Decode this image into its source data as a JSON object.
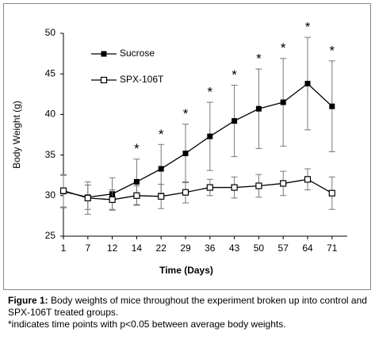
{
  "chart_data": {
    "type": "line",
    "x_label": "Time (Days)",
    "y_label": "Body Weight (g)",
    "categories": [
      "1",
      "7",
      "12",
      "14",
      "22",
      "29",
      "36",
      "43",
      "50",
      "57",
      "64",
      "71"
    ],
    "series": [
      {
        "name": "Sucrose",
        "color": "#000000",
        "marker": "filled-square",
        "values": [
          30.5,
          29.8,
          30.2,
          31.7,
          33.3,
          35.2,
          37.3,
          39.2,
          40.7,
          41.5,
          43.8,
          41.0
        ],
        "errors": [
          2.0,
          1.5,
          2.0,
          2.8,
          3.0,
          3.6,
          4.2,
          4.4,
          4.9,
          5.4,
          5.7,
          5.6
        ]
      },
      {
        "name": "SPX-106T",
        "color": "#000000",
        "marker": "open-square",
        "values": [
          30.6,
          29.7,
          29.5,
          30.0,
          29.9,
          30.4,
          31.0,
          31.0,
          31.2,
          31.5,
          32.0,
          30.3
        ],
        "errors": [
          2.0,
          2.0,
          1.2,
          1.2,
          1.5,
          1.3,
          1.0,
          1.3,
          1.4,
          1.5,
          1.3,
          2.0
        ]
      }
    ],
    "significance": [
      null,
      null,
      null,
      "*",
      "*",
      "*",
      "*",
      "*",
      "*",
      "*",
      "*",
      "*"
    ],
    "ylim": [
      25,
      50
    ],
    "yticks": [
      25,
      30,
      35,
      40,
      45,
      50
    ],
    "grid": false,
    "legend": "upper left"
  },
  "caption": {
    "label": "Figure 1:",
    "text": " Body weights of mice throughout the experiment broken up into control and SPX-106T treated groups.",
    "note": "*indicates time points with p<0.05 between average body weights."
  }
}
